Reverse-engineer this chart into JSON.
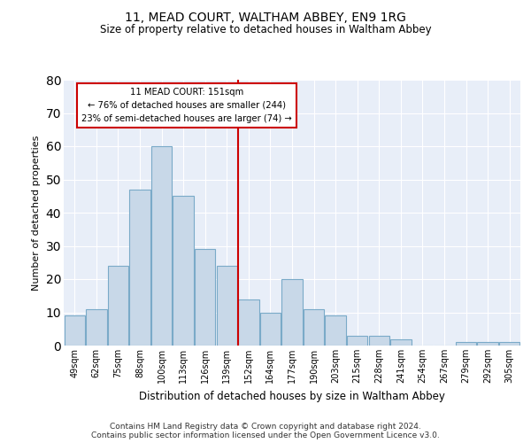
{
  "title1": "11, MEAD COURT, WALTHAM ABBEY, EN9 1RG",
  "title2": "Size of property relative to detached houses in Waltham Abbey",
  "xlabel": "Distribution of detached houses by size in Waltham Abbey",
  "ylabel": "Number of detached properties",
  "categories": [
    "49sqm",
    "62sqm",
    "75sqm",
    "88sqm",
    "100sqm",
    "113sqm",
    "126sqm",
    "139sqm",
    "152sqm",
    "164sqm",
    "177sqm",
    "190sqm",
    "203sqm",
    "215sqm",
    "228sqm",
    "241sqm",
    "254sqm",
    "267sqm",
    "279sqm",
    "292sqm",
    "305sqm"
  ],
  "values": [
    9,
    11,
    24,
    47,
    60,
    45,
    29,
    24,
    14,
    10,
    20,
    11,
    9,
    3,
    3,
    2,
    0,
    0,
    1,
    1,
    1
  ],
  "bar_color": "#c8d8e8",
  "bar_edge_color": "#7aaac8",
  "vline_index": 8,
  "annotation_title": "11 MEAD COURT: 151sqm",
  "annotation_line1": "← 76% of detached houses are smaller (244)",
  "annotation_line2": "23% of semi-detached houses are larger (74) →",
  "vline_color": "#cc0000",
  "annotation_box_color": "#cc0000",
  "ylim": [
    0,
    80
  ],
  "yticks": [
    0,
    10,
    20,
    30,
    40,
    50,
    60,
    70,
    80
  ],
  "bg_color": "#e8eef8",
  "footnote1": "Contains HM Land Registry data © Crown copyright and database right 2024.",
  "footnote2": "Contains public sector information licensed under the Open Government Licence v3.0."
}
